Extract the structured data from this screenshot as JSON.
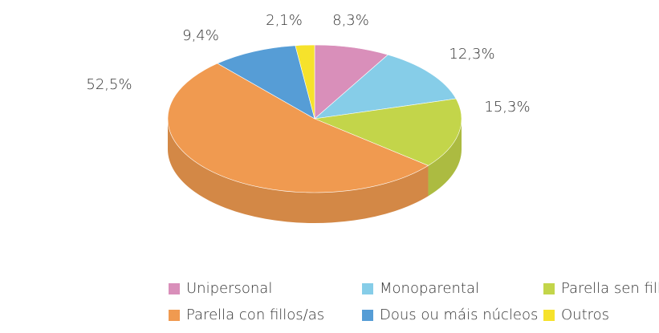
{
  "chart_data": {
    "type": "pie",
    "categories": [
      "Unipersonal",
      "Monoparental",
      "Parella sen fillos/as",
      "Parella con fillos/as",
      "Dous ou máis núcleos",
      "Outros"
    ],
    "values": [
      8.3,
      12.3,
      15.3,
      52.5,
      9.4,
      2.1
    ],
    "value_labels": [
      "8,3%",
      "12,3%",
      "15,3%",
      "52,5%",
      "9,4%",
      "2,1%"
    ],
    "colors": [
      "#d98fba",
      "#86cde8",
      "#c3d54a",
      "#f09a50",
      "#569dd6",
      "#f6e22b"
    ],
    "legend": "bottom"
  }
}
